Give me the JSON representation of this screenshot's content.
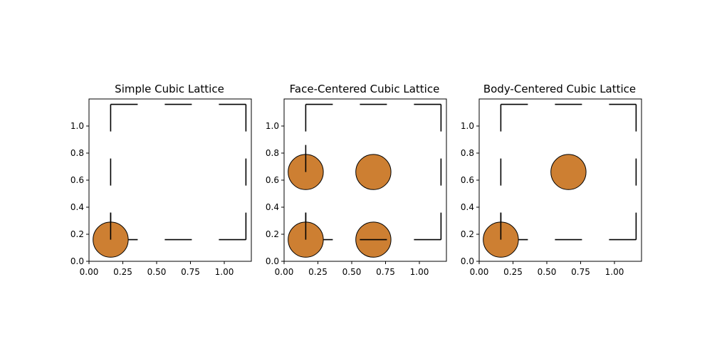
{
  "colors": {
    "atom": "#cd7f32",
    "edge": "#000000"
  },
  "chart_data": [
    {
      "type": "scatter",
      "title": "Simple Cubic Lattice",
      "xlim": [
        0,
        1.2
      ],
      "ylim": [
        0,
        1.2
      ],
      "xticks": [
        "0.00",
        "0.25",
        "0.50",
        "0.75",
        "1.00"
      ],
      "yticks": [
        "0.0",
        "0.2",
        "0.4",
        "0.6",
        "0.8",
        "1.0"
      ],
      "atom_radius": 0.13,
      "atoms": [
        {
          "x": 0.16,
          "y": 0.16
        }
      ],
      "cell_edges": [
        [
          [
            0.16,
            0.16
          ],
          [
            1.16,
            0.16
          ]
        ],
        [
          [
            1.16,
            0.16
          ],
          [
            1.16,
            1.16
          ]
        ],
        [
          [
            1.16,
            1.16
          ],
          [
            0.16,
            1.16
          ]
        ],
        [
          [
            0.16,
            1.16
          ],
          [
            0.16,
            0.16
          ]
        ]
      ],
      "dashed": true,
      "grid": false
    },
    {
      "type": "scatter",
      "title": "Face-Centered Cubic Lattice",
      "xlim": [
        0,
        1.2
      ],
      "ylim": [
        0,
        1.2
      ],
      "xticks": [
        "0.00",
        "0.25",
        "0.50",
        "0.75",
        "1.00"
      ],
      "yticks": [
        "0.0",
        "0.2",
        "0.4",
        "0.6",
        "0.8",
        "1.0"
      ],
      "atom_radius": 0.13,
      "atoms": [
        {
          "x": 0.16,
          "y": 0.16
        },
        {
          "x": 0.66,
          "y": 0.16
        },
        {
          "x": 0.16,
          "y": 0.66
        },
        {
          "x": 0.66,
          "y": 0.66
        }
      ],
      "cell_edges": [
        [
          [
            0.16,
            0.16
          ],
          [
            1.16,
            0.16
          ]
        ],
        [
          [
            1.16,
            0.16
          ],
          [
            1.16,
            1.16
          ]
        ],
        [
          [
            1.16,
            1.16
          ],
          [
            0.16,
            1.16
          ]
        ],
        [
          [
            0.16,
            1.16
          ],
          [
            0.16,
            0.16
          ]
        ]
      ],
      "dashed": true,
      "grid": false
    },
    {
      "type": "scatter",
      "title": "Body-Centered Cubic Lattice",
      "xlim": [
        0,
        1.2
      ],
      "ylim": [
        0,
        1.2
      ],
      "xticks": [
        "0.00",
        "0.25",
        "0.50",
        "0.75",
        "1.00"
      ],
      "yticks": [
        "0.0",
        "0.2",
        "0.4",
        "0.6",
        "0.8",
        "1.0"
      ],
      "atom_radius": 0.13,
      "atoms": [
        {
          "x": 0.16,
          "y": 0.16
        },
        {
          "x": 0.66,
          "y": 0.66
        }
      ],
      "cell_edges": [
        [
          [
            0.16,
            0.16
          ],
          [
            1.16,
            0.16
          ]
        ],
        [
          [
            1.16,
            0.16
          ],
          [
            1.16,
            1.16
          ]
        ],
        [
          [
            1.16,
            1.16
          ],
          [
            0.16,
            1.16
          ]
        ],
        [
          [
            0.16,
            1.16
          ],
          [
            0.16,
            0.16
          ]
        ]
      ],
      "dashed": true,
      "grid": false
    }
  ]
}
